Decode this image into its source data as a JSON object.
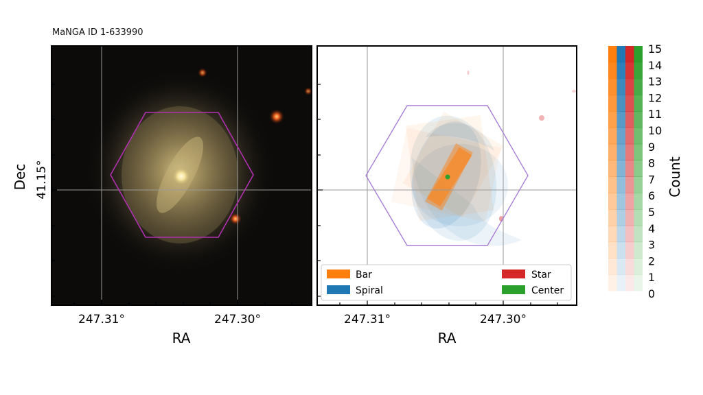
{
  "title": "MaNGA ID 1-633990",
  "chart_data": [
    {
      "type": "image",
      "panel": "sky-image",
      "xlabel": "RA",
      "ylabel": "Dec",
      "x_ticks": [
        "247.31°",
        "247.30°"
      ],
      "y_ticks": [
        "41.15°"
      ],
      "grid": true,
      "overlay": "hexagonal IFU footprint"
    },
    {
      "type": "heatmap",
      "panel": "classification-mask",
      "xlabel": "RA",
      "x_ticks": [
        "247.31°",
        "247.30°"
      ],
      "grid": true,
      "legend_position": "bottom",
      "series": [
        {
          "name": "Bar",
          "color": "#ff7f0e"
        },
        {
          "name": "Spiral",
          "color": "#1f77b4"
        },
        {
          "name": "Star",
          "color": "#d62728"
        },
        {
          "name": "Center",
          "color": "#2ca02c"
        }
      ]
    },
    {
      "type": "colorbar",
      "label": "Count",
      "ticks": [
        "0",
        "1",
        "2",
        "3",
        "4",
        "5",
        "6",
        "7",
        "8",
        "9",
        "10",
        "11",
        "12",
        "13",
        "14",
        "15"
      ],
      "range": [
        0,
        15
      ],
      "colors": [
        "#ff7f0e",
        "#1f77b4",
        "#d62728",
        "#2ca02c"
      ]
    }
  ]
}
